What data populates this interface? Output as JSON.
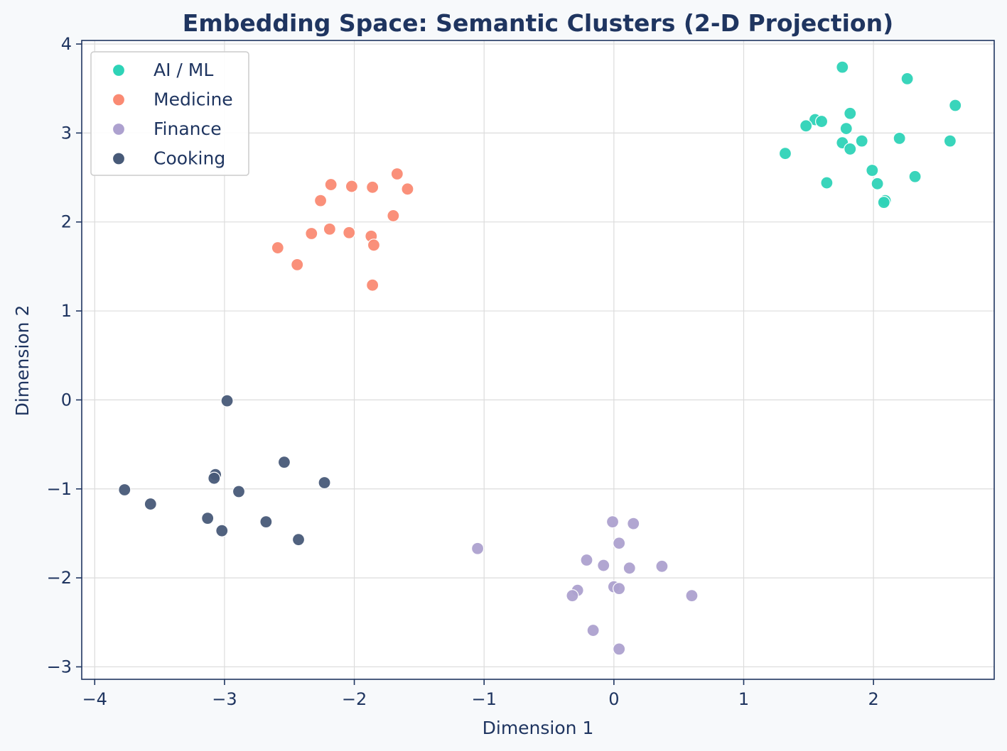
{
  "chart_data": {
    "type": "scatter",
    "title": "Embedding Space: Semantic Clusters (2-D Projection)",
    "xlabel": "Dimension 1",
    "ylabel": "Dimension 2",
    "xlim": [
      -4.1,
      2.93
    ],
    "ylim": [
      -3.14,
      4.04
    ],
    "xticks": [
      -4,
      -3,
      -2,
      -1,
      0,
      1,
      2
    ],
    "xtick_labels": [
      "−4",
      "−3",
      "−2",
      "−1",
      "0",
      "1",
      "2"
    ],
    "yticks": [
      -3,
      -2,
      -1,
      0,
      1,
      2,
      3,
      4
    ],
    "ytick_labels": [
      "−3",
      "−2",
      "−1",
      "0",
      "1",
      "2",
      "3",
      "4"
    ],
    "grid": true,
    "legend_position": "top-left",
    "series": [
      {
        "name": "AI / ML",
        "color": "#2ed3b7",
        "points": [
          [
            1.76,
            3.74
          ],
          [
            2.26,
            3.61
          ],
          [
            2.63,
            3.31
          ],
          [
            1.55,
            3.15
          ],
          [
            1.6,
            3.13
          ],
          [
            1.48,
            3.08
          ],
          [
            1.82,
            3.22
          ],
          [
            1.79,
            3.05
          ],
          [
            1.91,
            2.91
          ],
          [
            1.76,
            2.89
          ],
          [
            1.82,
            2.82
          ],
          [
            2.2,
            2.94
          ],
          [
            2.59,
            2.91
          ],
          [
            1.32,
            2.77
          ],
          [
            1.99,
            2.58
          ],
          [
            2.32,
            2.51
          ],
          [
            1.64,
            2.44
          ],
          [
            2.03,
            2.43
          ],
          [
            2.09,
            2.24
          ],
          [
            2.08,
            2.22
          ]
        ]
      },
      {
        "name": "Medicine",
        "color": "#fa8a73",
        "points": [
          [
            -1.67,
            2.54
          ],
          [
            -1.59,
            2.37
          ],
          [
            -2.18,
            2.42
          ],
          [
            -2.02,
            2.4
          ],
          [
            -1.86,
            2.39
          ],
          [
            -2.26,
            2.24
          ],
          [
            -1.7,
            2.07
          ],
          [
            -2.19,
            1.92
          ],
          [
            -2.33,
            1.87
          ],
          [
            -2.04,
            1.88
          ],
          [
            -1.87,
            1.84
          ],
          [
            -1.85,
            1.74
          ],
          [
            -2.59,
            1.71
          ],
          [
            -2.44,
            1.52
          ],
          [
            -1.86,
            1.29
          ]
        ]
      },
      {
        "name": "Finance",
        "color": "#ada1cf",
        "points": [
          [
            -1.05,
            -1.67
          ],
          [
            -0.01,
            -1.37
          ],
          [
            0.15,
            -1.39
          ],
          [
            0.04,
            -1.61
          ],
          [
            -0.21,
            -1.8
          ],
          [
            -0.08,
            -1.86
          ],
          [
            0.12,
            -1.89
          ],
          [
            0.37,
            -1.87
          ],
          [
            -0.28,
            -2.14
          ],
          [
            -0.32,
            -2.2
          ],
          [
            0.0,
            -2.1
          ],
          [
            0.04,
            -2.12
          ],
          [
            0.6,
            -2.2
          ],
          [
            -0.16,
            -2.59
          ],
          [
            0.04,
            -2.8
          ]
        ]
      },
      {
        "name": "Cooking",
        "color": "#485a78",
        "points": [
          [
            -2.98,
            -0.01
          ],
          [
            -3.07,
            -0.84
          ],
          [
            -3.08,
            -0.88
          ],
          [
            -2.54,
            -0.7
          ],
          [
            -2.23,
            -0.93
          ],
          [
            -3.77,
            -1.01
          ],
          [
            -2.89,
            -1.03
          ],
          [
            -3.57,
            -1.17
          ],
          [
            -3.13,
            -1.33
          ],
          [
            -2.68,
            -1.37
          ],
          [
            -3.02,
            -1.47
          ],
          [
            -2.43,
            -1.57
          ]
        ]
      }
    ]
  }
}
